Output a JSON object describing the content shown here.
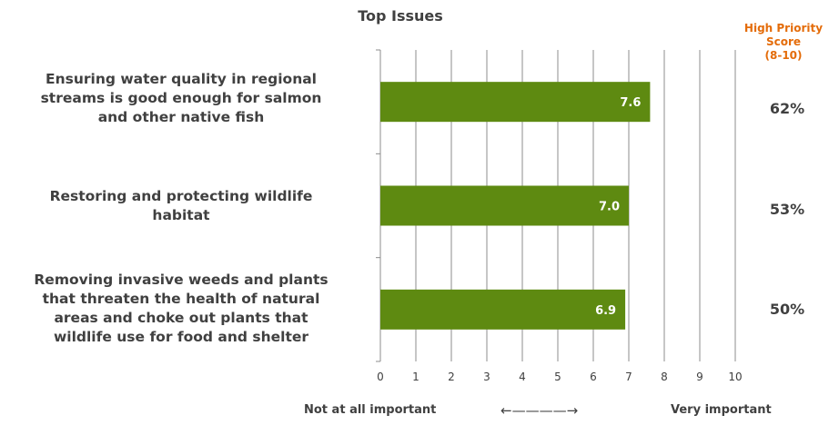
{
  "chart_data": {
    "type": "bar",
    "orientation": "horizontal",
    "title": "Top Issues",
    "categories": [
      "Ensuring water quality in regional streams is good enough for salmon and other native fish",
      "Restoring and protecting wildlife habitat",
      "Removing invasive weeds and plants that threaten the health of natural areas and choke out plants that wildlife use for food and shelter"
    ],
    "category_lines": [
      [
        "Ensuring water quality in regional",
        "streams is good enough for salmon",
        "and other native fish"
      ],
      [
        "Restoring and protecting wildlife",
        "habitat"
      ],
      [
        "Removing invasive weeds and plants",
        "that threaten the health of natural",
        "areas and choke out plants that",
        "wildlife use for food and shelter"
      ]
    ],
    "values": [
      7.6,
      7.0,
      6.9
    ],
    "value_labels": [
      "7.6",
      "7.0",
      "6.9"
    ],
    "xlim": [
      0,
      10
    ],
    "xticks": [
      0,
      1,
      2,
      3,
      4,
      5,
      6,
      7,
      8,
      9,
      10
    ],
    "grid": true,
    "bar_color": "#5e8a11",
    "high_priority_header": [
      "High Priority",
      "Score",
      "(8-10)"
    ],
    "high_priority_color": "#e46c0a",
    "high_priority_scores": [
      "62%",
      "53%",
      "50%"
    ],
    "scale_anchors": {
      "left": "Not at all important",
      "right": "Very important",
      "arrow": "←————→"
    }
  }
}
